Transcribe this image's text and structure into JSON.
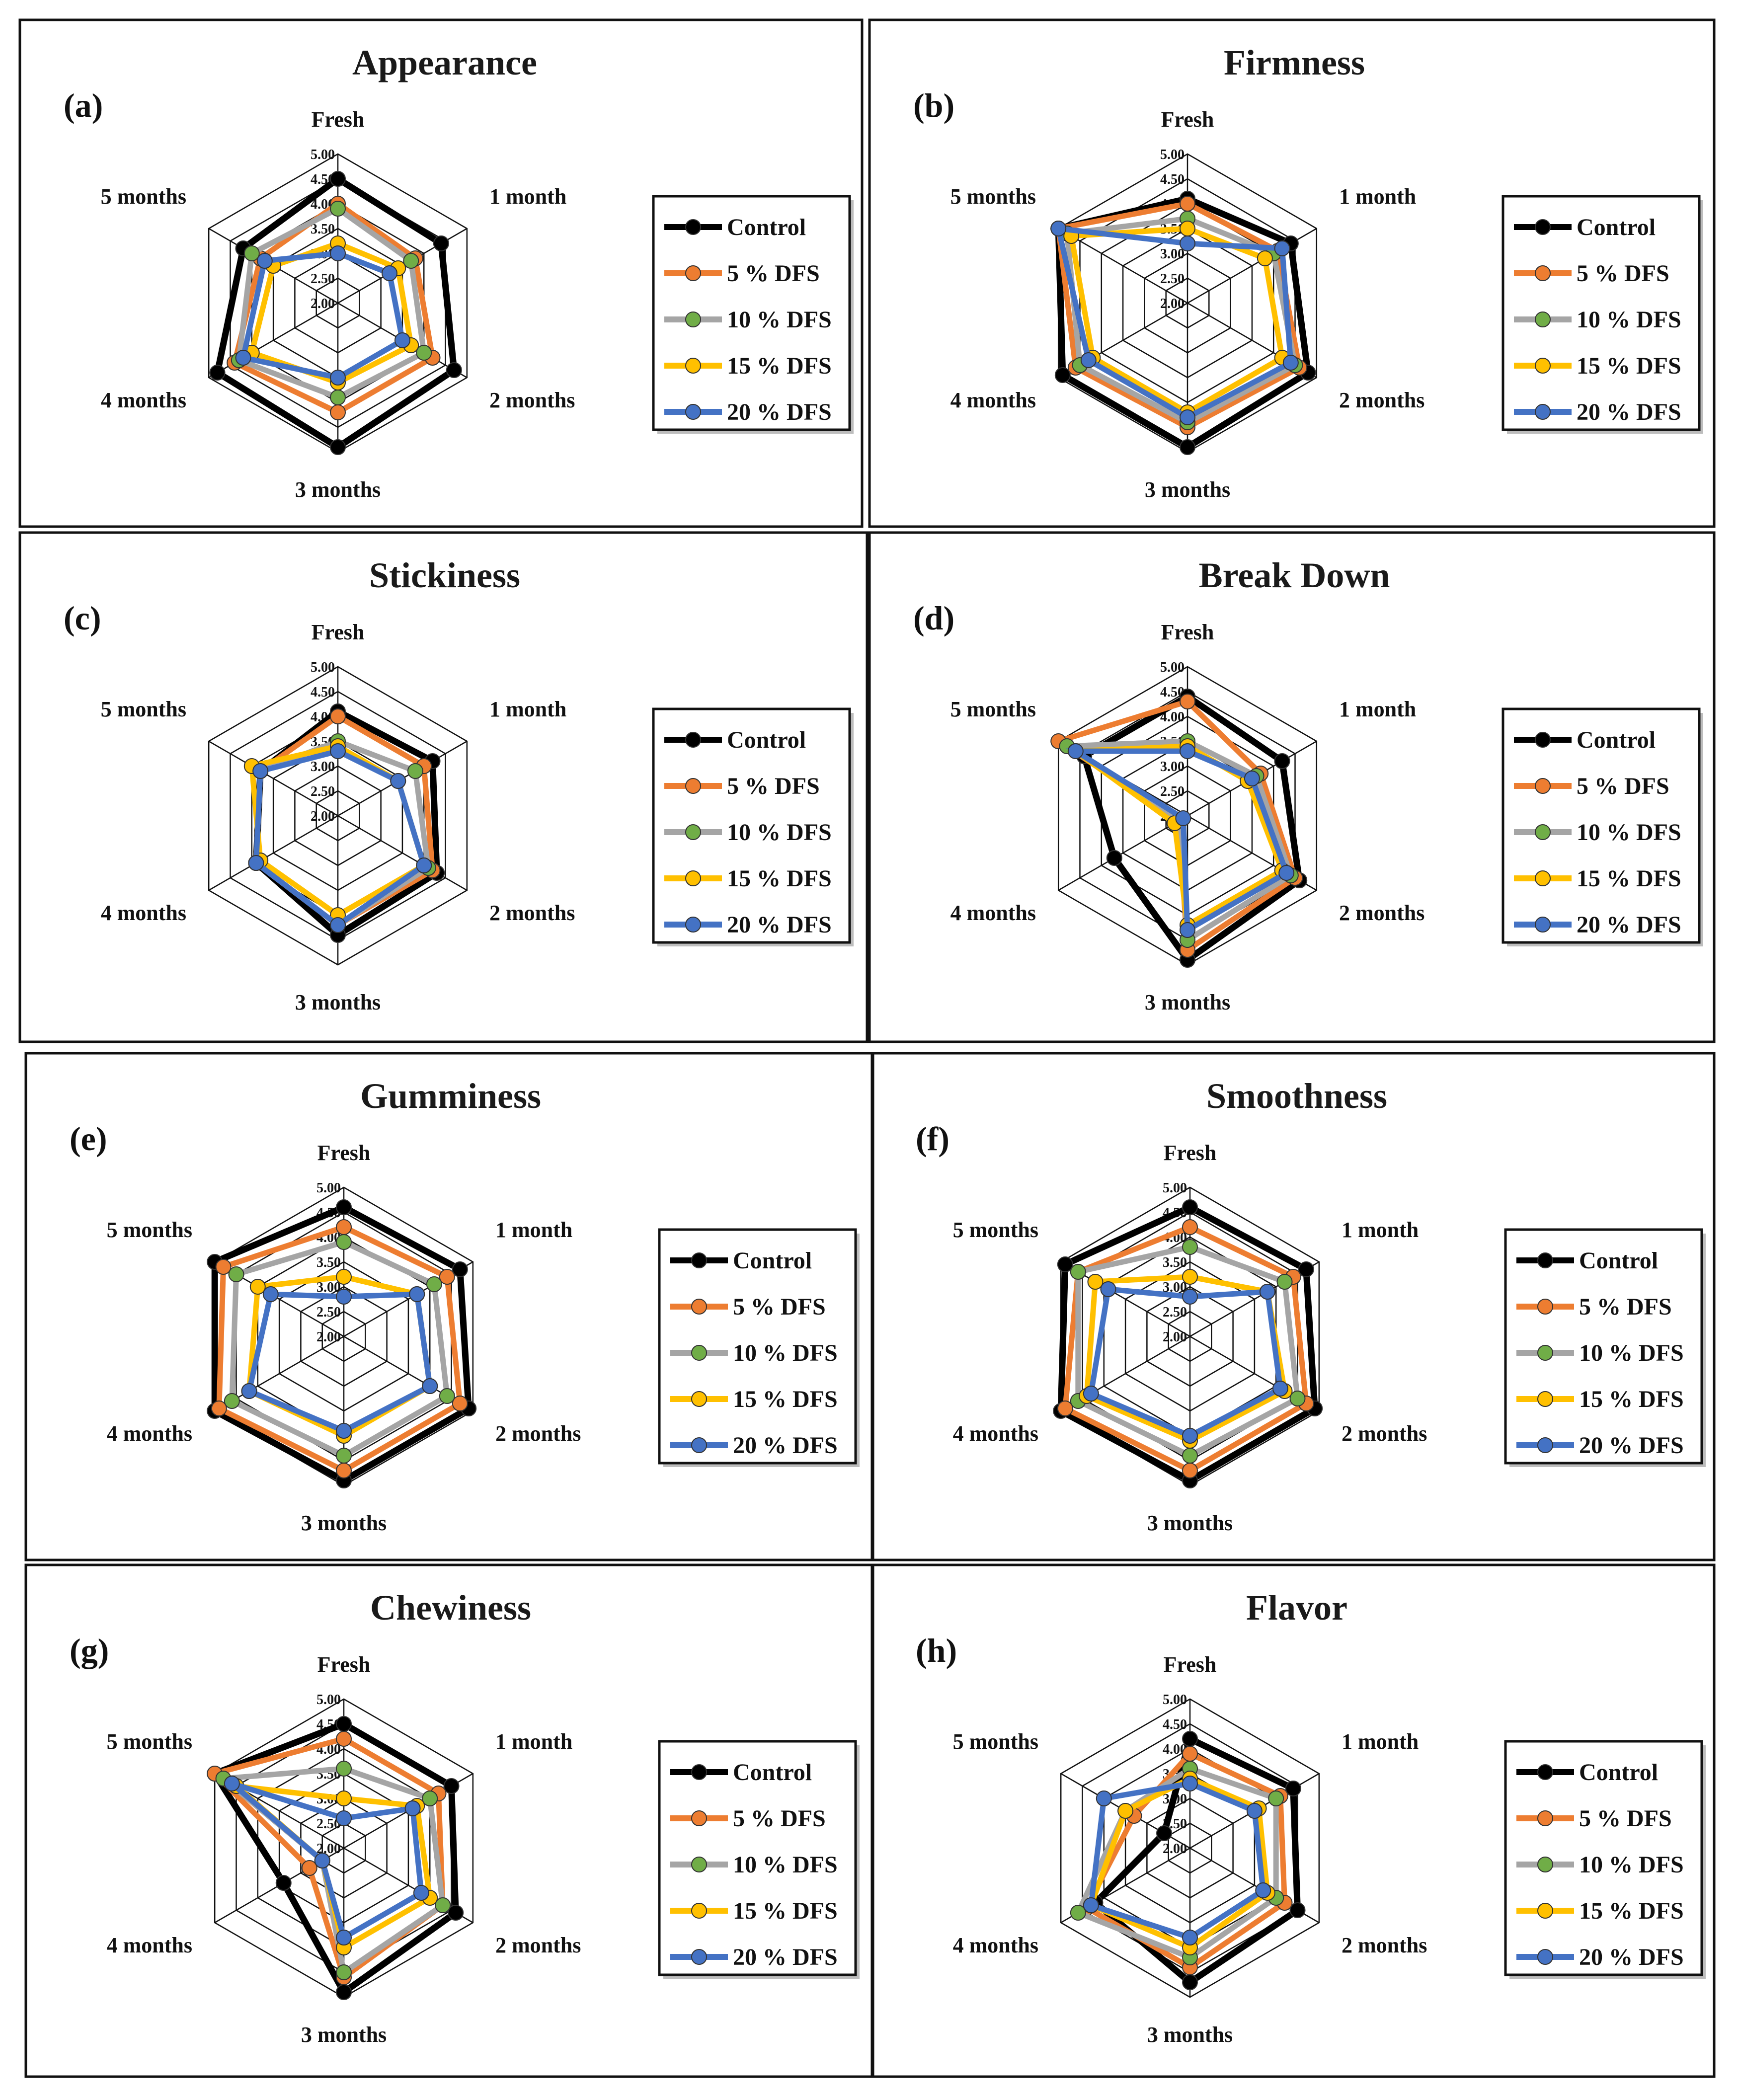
{
  "figure": {
    "axes": [
      "Fresh",
      "1 month",
      "2 months",
      "3 months",
      "4 months",
      "5 months"
    ],
    "ticks": [
      "2.00",
      "2.50",
      "3.00",
      "3.50",
      "4.00",
      "4.50",
      "5.00"
    ],
    "series_names": [
      "Control",
      "5   % DFS",
      "10 % DFS",
      "15 % DFS",
      "20 % DFS"
    ],
    "series_colors": [
      "#000000",
      "#ED7D31",
      "#A5A5A5",
      "#FFC000",
      "#4472C4"
    ],
    "marker_colors": [
      "#000000",
      "#ED7D31",
      "#70AD47",
      "#FFC000",
      "#4472C4"
    ]
  },
  "chart_data": [
    {
      "type": "radar",
      "panel": "(a)",
      "title": "Appearance",
      "rmin": 2,
      "rmax": 5,
      "categories": [
        "Fresh",
        "1 month",
        "2 months",
        "3 months",
        "4 months",
        "5 months"
      ],
      "series": [
        {
          "name": "Control",
          "values": [
            4.5,
            4.4,
            4.7,
            4.9,
            4.8,
            4.2
          ]
        },
        {
          "name": "5   % DFS",
          "values": [
            4.0,
            3.8,
            4.2,
            4.2,
            4.4,
            3.8
          ]
        },
        {
          "name": "10 % DFS",
          "values": [
            3.9,
            3.7,
            4.0,
            3.9,
            4.3,
            4.0
          ]
        },
        {
          "name": "15 % DFS",
          "values": [
            3.2,
            3.4,
            3.7,
            3.6,
            4.0,
            3.5
          ]
        },
        {
          "name": "20 % DFS",
          "values": [
            3.0,
            3.2,
            3.5,
            3.5,
            4.2,
            3.7
          ]
        }
      ]
    },
    {
      "type": "radar",
      "panel": "(b)",
      "title": "Firmness",
      "rmin": 2,
      "rmax": 5,
      "categories": [
        "Fresh",
        "1 month",
        "2 months",
        "3 months",
        "4 months",
        "5 months"
      ],
      "series": [
        {
          "name": "Control",
          "values": [
            4.1,
            4.4,
            4.8,
            4.9,
            4.9,
            5.0
          ]
        },
        {
          "name": "5   % DFS",
          "values": [
            4.0,
            4.1,
            4.6,
            4.5,
            4.6,
            5.0
          ]
        },
        {
          "name": "10 % DFS",
          "values": [
            3.7,
            4.0,
            4.5,
            4.4,
            4.5,
            4.8
          ]
        },
        {
          "name": "15 % DFS",
          "values": [
            3.5,
            3.8,
            4.2,
            4.2,
            4.2,
            4.7
          ]
        },
        {
          "name": "20 % DFS",
          "values": [
            3.2,
            4.2,
            4.4,
            4.3,
            4.3,
            5.0
          ]
        }
      ]
    },
    {
      "type": "radar",
      "panel": "(c)",
      "title": "Stickiness",
      "rmin": 2,
      "rmax": 5,
      "categories": [
        "Fresh",
        "1 month",
        "2 months",
        "3 months",
        "4 months",
        "5 months"
      ],
      "series": [
        {
          "name": "Control",
          "values": [
            4.1,
            4.2,
            4.3,
            4.4,
            3.9,
            3.8
          ]
        },
        {
          "name": "5   % DFS",
          "values": [
            4.0,
            4.0,
            4.2,
            4.2,
            3.9,
            3.8
          ]
        },
        {
          "name": "10 % DFS",
          "values": [
            3.5,
            3.8,
            4.1,
            4.2,
            3.9,
            3.8
          ]
        },
        {
          "name": "15 % DFS",
          "values": [
            3.4,
            3.4,
            4.0,
            4.0,
            3.8,
            4.0
          ]
        },
        {
          "name": "20 % DFS",
          "values": [
            3.3,
            3.4,
            4.0,
            4.2,
            3.9,
            3.8
          ]
        }
      ]
    },
    {
      "type": "radar",
      "panel": "(d)",
      "title": "Break Down",
      "rmin": 2,
      "rmax": 5,
      "categories": [
        "Fresh",
        "1 month",
        "2 months",
        "3 months",
        "4 months",
        "5 months"
      ],
      "series": [
        {
          "name": "Control",
          "values": [
            4.4,
            4.2,
            4.6,
            4.9,
            3.7,
            4.4
          ]
        },
        {
          "name": "5   % DFS",
          "values": [
            4.3,
            3.7,
            4.5,
            4.7,
            2.2,
            5.0
          ]
        },
        {
          "name": "10 % DFS",
          "values": [
            3.5,
            3.6,
            4.4,
            4.5,
            2.2,
            4.8
          ]
        },
        {
          "name": "15 % DFS",
          "values": [
            3.4,
            3.4,
            4.2,
            4.2,
            2.3,
            4.6
          ]
        },
        {
          "name": "20 % DFS",
          "values": [
            3.3,
            3.5,
            4.3,
            4.3,
            2.1,
            4.6
          ]
        }
      ]
    },
    {
      "type": "radar",
      "panel": "(e)",
      "title": "Gumminess",
      "rmin": 2,
      "rmax": 5,
      "categories": [
        "Fresh",
        "1 month",
        "2 months",
        "3 months",
        "4 months",
        "5 months"
      ],
      "series": [
        {
          "name": "Control",
          "values": [
            4.6,
            4.7,
            4.9,
            4.9,
            5.0,
            5.0
          ]
        },
        {
          "name": "5   % DFS",
          "values": [
            4.2,
            4.4,
            4.7,
            4.7,
            4.9,
            4.8
          ]
        },
        {
          "name": "10 % DFS",
          "values": [
            3.9,
            4.1,
            4.4,
            4.4,
            4.6,
            4.5
          ]
        },
        {
          "name": "15 % DFS",
          "values": [
            3.2,
            3.7,
            4.0,
            4.0,
            4.2,
            4.0
          ]
        },
        {
          "name": "20 % DFS",
          "values": [
            2.8,
            3.7,
            4.0,
            3.9,
            4.2,
            3.7
          ]
        }
      ]
    },
    {
      "type": "radar",
      "panel": "(f)",
      "title": "Smoothness",
      "rmin": 2,
      "rmax": 5,
      "categories": [
        "Fresh",
        "1 month",
        "2 months",
        "3 months",
        "4 months",
        "5 months"
      ],
      "series": [
        {
          "name": "Control",
          "values": [
            4.6,
            4.7,
            4.9,
            4.9,
            5.0,
            4.9
          ]
        },
        {
          "name": "5   % DFS",
          "values": [
            4.2,
            4.4,
            4.7,
            4.7,
            4.9,
            4.6
          ]
        },
        {
          "name": "10 % DFS",
          "values": [
            3.8,
            4.2,
            4.5,
            4.4,
            4.6,
            4.6
          ]
        },
        {
          "name": "15 % DFS",
          "values": [
            3.2,
            3.8,
            4.2,
            4.1,
            4.4,
            4.2
          ]
        },
        {
          "name": "20 % DFS",
          "values": [
            2.8,
            3.8,
            4.1,
            4.0,
            4.3,
            3.9
          ]
        }
      ]
    },
    {
      "type": "radar",
      "panel": "(g)",
      "title": "Chewiness",
      "rmin": 2,
      "rmax": 5,
      "categories": [
        "Fresh",
        "1 month",
        "2 months",
        "3 months",
        "4 months",
        "5 months"
      ],
      "series": [
        {
          "name": "Control",
          "values": [
            4.5,
            4.5,
            4.6,
            4.9,
            3.4,
            5.0
          ]
        },
        {
          "name": "5   % DFS",
          "values": [
            4.2,
            4.2,
            4.3,
            4.6,
            2.8,
            5.0
          ]
        },
        {
          "name": "10 % DFS",
          "values": [
            3.6,
            4.0,
            4.3,
            4.5,
            2.5,
            4.8
          ]
        },
        {
          "name": "15 % DFS",
          "values": [
            3.0,
            3.7,
            4.0,
            4.0,
            2.5,
            4.5
          ]
        },
        {
          "name": "20 % DFS",
          "values": [
            2.6,
            3.6,
            3.8,
            3.8,
            2.5,
            4.6
          ]
        }
      ]
    },
    {
      "type": "radar",
      "panel": "(h)",
      "title": "Flavor",
      "rmin": 2,
      "rmax": 5,
      "categories": [
        "Fresh",
        "1 month",
        "2 months",
        "3 months",
        "4 months",
        "5 months"
      ],
      "series": [
        {
          "name": "Control",
          "values": [
            4.2,
            4.4,
            4.5,
            4.7,
            4.2,
            2.6
          ]
        },
        {
          "name": "5   % DFS",
          "values": [
            3.9,
            4.1,
            4.2,
            4.4,
            4.4,
            3.3
          ]
        },
        {
          "name": "10 % DFS",
          "values": [
            3.6,
            4.0,
            4.0,
            4.2,
            4.6,
            3.5
          ]
        },
        {
          "name": "15 % DFS",
          "values": [
            3.4,
            3.6,
            3.8,
            4.0,
            4.3,
            3.5
          ]
        },
        {
          "name": "20 % DFS",
          "values": [
            3.3,
            3.5,
            3.7,
            3.8,
            4.3,
            4.0
          ]
        }
      ]
    }
  ]
}
